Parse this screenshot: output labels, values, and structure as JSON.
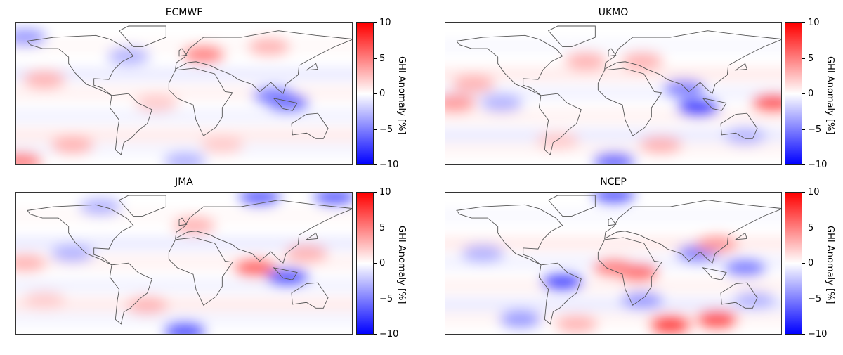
{
  "colorbar": {
    "label": "GHI Anomaly [%]",
    "ticks": [
      "10",
      "5",
      "0",
      "−5",
      "−10"
    ],
    "vmin": -10,
    "vmax": 10,
    "colormap": "bwr",
    "low_color": "#0000ff",
    "mid_color": "#ffffff",
    "high_color": "#ff0000"
  },
  "chart_data": [
    {
      "type": "heatmap",
      "title": "ECMWF",
      "lon_range": [
        -180,
        180
      ],
      "lat_range": [
        -67,
        85
      ],
      "anomaly_regions": [
        {
          "lon": 20,
          "lat": 52,
          "value": 5
        },
        {
          "lon": 90,
          "lat": 60,
          "value": 3
        },
        {
          "lon": -150,
          "lat": 25,
          "value": 3
        },
        {
          "lon": 110,
          "lat": 0,
          "value": -6
        },
        {
          "lon": 95,
          "lat": 8,
          "value": -5
        },
        {
          "lon": -170,
          "lat": 70,
          "value": -4
        },
        {
          "lon": -60,
          "lat": 50,
          "value": -3
        },
        {
          "lon": -120,
          "lat": -45,
          "value": 3
        },
        {
          "lon": 40,
          "lat": -45,
          "value": 2
        },
        {
          "lon": 0,
          "lat": -62,
          "value": -3
        },
        {
          "lon": -175,
          "lat": -62,
          "value": 5
        },
        {
          "lon": -30,
          "lat": 0,
          "value": 2
        }
      ]
    },
    {
      "type": "heatmap",
      "title": "UKMO",
      "lon_range": [
        -180,
        180
      ],
      "lat_range": [
        -67,
        85
      ],
      "anomaly_regions": [
        {
          "lon": 90,
          "lat": -5,
          "value": -8
        },
        {
          "lon": 75,
          "lat": 15,
          "value": -5
        },
        {
          "lon": 170,
          "lat": 0,
          "value": 7
        },
        {
          "lon": -150,
          "lat": 20,
          "value": 3
        },
        {
          "lon": 30,
          "lat": 45,
          "value": 3
        },
        {
          "lon": -30,
          "lat": 45,
          "value": 3
        },
        {
          "lon": -120,
          "lat": 0,
          "value": -3
        },
        {
          "lon": 140,
          "lat": -35,
          "value": -3
        },
        {
          "lon": 0,
          "lat": -62,
          "value": -6
        },
        {
          "lon": -60,
          "lat": -40,
          "value": 2
        },
        {
          "lon": 50,
          "lat": -45,
          "value": 3
        },
        {
          "lon": -170,
          "lat": 0,
          "value": 4
        }
      ]
    },
    {
      "type": "heatmap",
      "title": "JMA",
      "lon_range": [
        -180,
        180
      ],
      "lat_range": [
        -67,
        85
      ],
      "anomaly_regions": [
        {
          "lon": 110,
          "lat": -5,
          "value": -7
        },
        {
          "lon": 75,
          "lat": 5,
          "value": 6
        },
        {
          "lon": 80,
          "lat": 80,
          "value": -6
        },
        {
          "lon": 160,
          "lat": 80,
          "value": -6
        },
        {
          "lon": 0,
          "lat": -62,
          "value": -7
        },
        {
          "lon": -170,
          "lat": 10,
          "value": 3
        },
        {
          "lon": 10,
          "lat": 50,
          "value": 3
        },
        {
          "lon": -120,
          "lat": 20,
          "value": -3
        },
        {
          "lon": -40,
          "lat": -35,
          "value": 3
        },
        {
          "lon": 130,
          "lat": 20,
          "value": 3
        },
        {
          "lon": -150,
          "lat": -30,
          "value": 2
        },
        {
          "lon": -90,
          "lat": 70,
          "value": -3
        }
      ]
    },
    {
      "type": "heatmap",
      "title": "NCEP",
      "lon_range": [
        -180,
        180
      ],
      "lat_range": [
        -67,
        85
      ],
      "anomaly_regions": [
        {
          "lon": -55,
          "lat": -10,
          "value": -7
        },
        {
          "lon": 25,
          "lat": 0,
          "value": 6
        },
        {
          "lon": 0,
          "lat": 5,
          "value": 5
        },
        {
          "lon": 90,
          "lat": 20,
          "value": -5
        },
        {
          "lon": 110,
          "lat": 30,
          "value": 4
        },
        {
          "lon": 60,
          "lat": -55,
          "value": 8
        },
        {
          "lon": 110,
          "lat": -50,
          "value": 7
        },
        {
          "lon": 0,
          "lat": 82,
          "value": -6
        },
        {
          "lon": 140,
          "lat": 5,
          "value": -5
        },
        {
          "lon": -140,
          "lat": 20,
          "value": -3
        },
        {
          "lon": -40,
          "lat": -55,
          "value": 3
        },
        {
          "lon": -100,
          "lat": -50,
          "value": -4
        },
        {
          "lon": 30,
          "lat": -30,
          "value": -4
        },
        {
          "lon": 150,
          "lat": -30,
          "value": -3
        }
      ]
    }
  ]
}
